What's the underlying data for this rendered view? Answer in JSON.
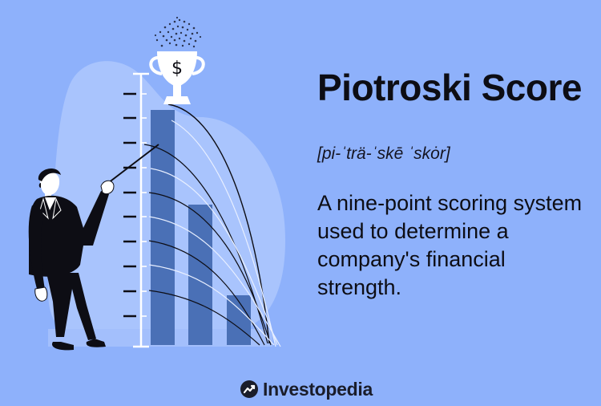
{
  "title": "Piotroski Score",
  "pronunciation": "[pi-ˈträ-ˈskē ˈskȯr]",
  "description": "A nine-point scoring system used to determine a company's financial strength.",
  "brand": {
    "name": "Investopedia",
    "logo_icon": "investopedia-logo-icon"
  },
  "illustration": {
    "icons": [
      "trophy-icon",
      "dollar-sign-icon",
      "businessman-figure",
      "pointer-stick",
      "ruler-scale",
      "bar-chart"
    ],
    "bar_levels": [
      0.9,
      0.6,
      0.2
    ],
    "colors": {
      "background": "#8eb1fb",
      "blob": "#a9c4fd",
      "bars": "#4a70b6",
      "ink": "#0d0d14",
      "trophy": "#ffffff"
    }
  }
}
